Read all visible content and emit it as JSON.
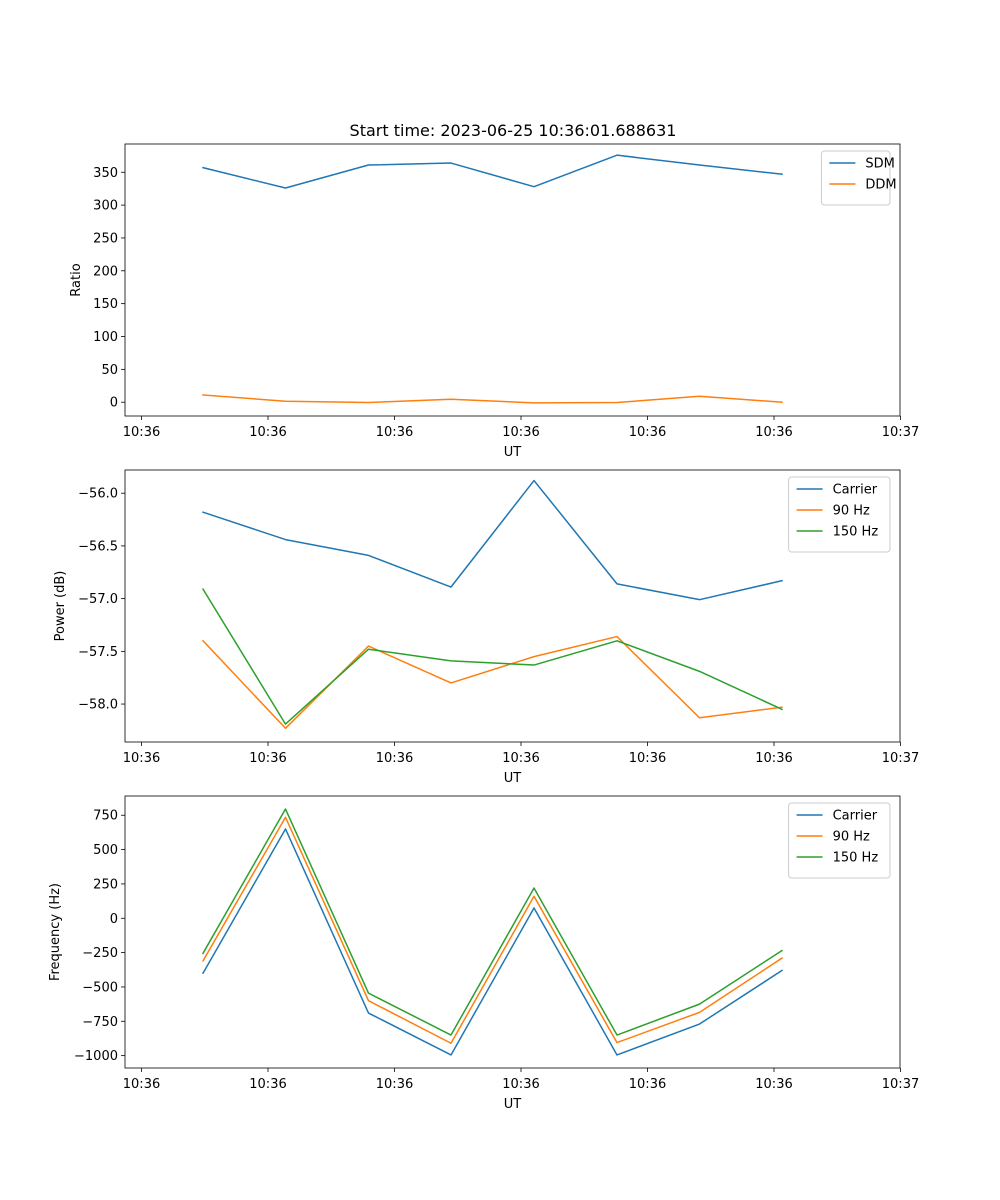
{
  "figure": {
    "title": "Start time: 2023-06-25 10:36:01.688631"
  },
  "chart_data": [
    {
      "type": "line",
      "xlabel": "UT",
      "ylabel": "Ratio",
      "x_tick_labels": [
        "10:36",
        "10:36",
        "10:36",
        "10:36",
        "10:36",
        "10:36",
        "10:37"
      ],
      "y_ticks": [
        0,
        50,
        100,
        150,
        200,
        250,
        300,
        350
      ],
      "ylim": [
        -21,
        393
      ],
      "legend": "top-right",
      "series": [
        {
          "name": "SDM",
          "color": "#1f77b4",
          "values": [
            357,
            326,
            361,
            364,
            328,
            376,
            361,
            347
          ]
        },
        {
          "name": "DDM",
          "color": "#ff7f0e",
          "values": [
            11,
            1.5,
            -0.5,
            4.5,
            -1,
            -0.5,
            9,
            0
          ]
        }
      ]
    },
    {
      "type": "line",
      "xlabel": "UT",
      "ylabel": "Power (dB)",
      "x_tick_labels": [
        "10:36",
        "10:36",
        "10:36",
        "10:36",
        "10:36",
        "10:36",
        "10:37"
      ],
      "y_ticks": [
        -58.0,
        -57.5,
        -57.0,
        -56.5,
        -56.0
      ],
      "y_tick_labels": [
        "−58.0",
        "−57.5",
        "−57.0",
        "−56.5",
        "−56.0"
      ],
      "ylim": [
        -58.36,
        -55.78
      ],
      "legend": "top-right",
      "series": [
        {
          "name": "Carrier",
          "color": "#1f77b4",
          "values": [
            -56.18,
            -56.44,
            -56.59,
            -56.89,
            -55.88,
            -56.86,
            -57.01,
            -56.83
          ]
        },
        {
          "name": "90 Hz",
          "color": "#ff7f0e",
          "values": [
            -57.4,
            -58.23,
            -57.45,
            -57.8,
            -57.55,
            -57.36,
            -58.13,
            -58.03
          ]
        },
        {
          "name": "150 Hz",
          "color": "#2ca02c",
          "values": [
            -56.91,
            -58.19,
            -57.48,
            -57.59,
            -57.63,
            -57.4,
            -57.69,
            -58.05
          ]
        }
      ]
    },
    {
      "type": "line",
      "xlabel": "UT",
      "ylabel": "Frequency (Hz)",
      "x_tick_labels": [
        "10:36",
        "10:36",
        "10:36",
        "10:36",
        "10:36",
        "10:36",
        "10:37"
      ],
      "y_ticks": [
        -1000,
        -750,
        -500,
        -250,
        0,
        250,
        500,
        750
      ],
      "y_tick_labels": [
        "−1000",
        "−750",
        "−500",
        "−250",
        "0",
        "250",
        "500",
        "750"
      ],
      "ylim": [
        -1090,
        890
      ],
      "legend": "top-right",
      "series": [
        {
          "name": "Carrier",
          "color": "#1f77b4",
          "values": [
            -400,
            650,
            -690,
            -995,
            75,
            -995,
            -770,
            -380
          ]
        },
        {
          "name": "90 Hz",
          "color": "#ff7f0e",
          "values": [
            -310,
            735,
            -600,
            -910,
            160,
            -905,
            -685,
            -290
          ]
        },
        {
          "name": "150 Hz",
          "color": "#2ca02c",
          "values": [
            -255,
            795,
            -545,
            -850,
            220,
            -850,
            -625,
            -235
          ]
        }
      ]
    }
  ]
}
